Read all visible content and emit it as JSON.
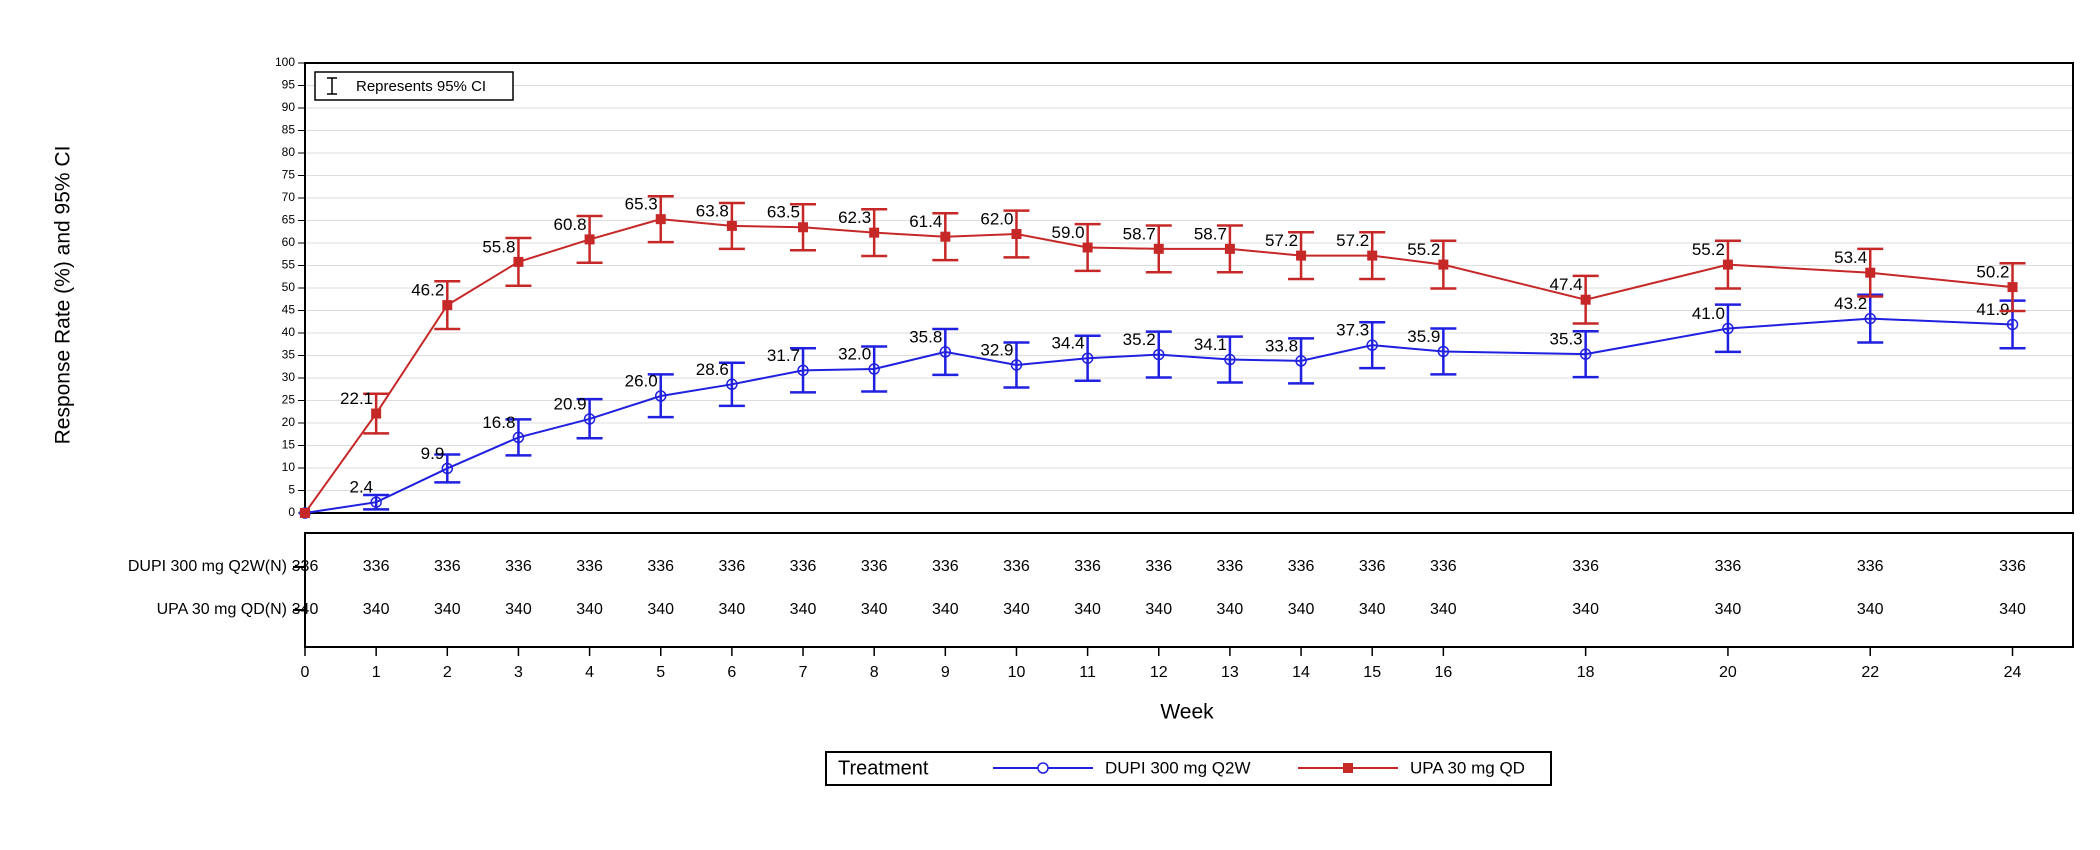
{
  "chart_data": {
    "type": "line",
    "y_label": "Response Rate (%) and 95% CI",
    "x_label": "Week",
    "annotation": "Represents 95% CI",
    "legend_title": "Treatment",
    "x": [
      0,
      1,
      2,
      3,
      4,
      5,
      6,
      7,
      8,
      9,
      10,
      11,
      12,
      13,
      14,
      15,
      16,
      18,
      20,
      22,
      24
    ],
    "xlim": [
      0,
      24.85
    ],
    "xticks": [
      0,
      1,
      2,
      3,
      4,
      5,
      6,
      7,
      8,
      9,
      10,
      11,
      12,
      13,
      14,
      15,
      16,
      18,
      20,
      22,
      24
    ],
    "ylim": [
      0,
      100
    ],
    "yticks": [
      0,
      5,
      10,
      15,
      20,
      25,
      30,
      35,
      40,
      45,
      50,
      55,
      60,
      65,
      70,
      75,
      80,
      85,
      90,
      95,
      100
    ],
    "grid": true,
    "series": [
      {
        "name": "DUPI 300 mg Q2W",
        "color": "#2020e0",
        "marker": "circle",
        "values": [
          0,
          2.4,
          9.9,
          16.8,
          20.9,
          26.0,
          28.6,
          31.7,
          32.0,
          35.8,
          32.9,
          34.4,
          35.2,
          34.1,
          33.8,
          37.3,
          35.9,
          35.3,
          41.0,
          43.2,
          41.9
        ],
        "value_labels": [
          null,
          "2.4",
          "9.9",
          "16.8",
          "20.9",
          "26.0",
          "28.6",
          "31.7",
          "32.0",
          "35.8",
          "32.9",
          "34.4",
          "35.2",
          "34.1",
          "33.8",
          "37.3",
          "35.9",
          "35.3",
          "41.0",
          "43.2",
          "41.9"
        ],
        "ci_lower": [
          null,
          0.8,
          6.8,
          12.8,
          16.6,
          21.3,
          23.8,
          26.8,
          27,
          30.7,
          27.9,
          29.4,
          30.1,
          29,
          28.8,
          32.2,
          30.8,
          30.2,
          35.8,
          37.9,
          36.6
        ],
        "ci_upper": [
          null,
          4,
          13,
          20.8,
          25.3,
          30.8,
          33.4,
          36.6,
          37,
          40.9,
          37.9,
          39.4,
          40.3,
          39.2,
          38.8,
          42.4,
          41,
          40.4,
          46.3,
          48.5,
          47.2
        ]
      },
      {
        "name": "UPA 30 mg QD",
        "color": "#c62828",
        "marker": "square",
        "values": [
          0,
          22.1,
          46.2,
          55.8,
          60.8,
          65.3,
          63.8,
          63.5,
          62.3,
          61.4,
          62.0,
          59.0,
          58.7,
          58.7,
          57.2,
          57.2,
          55.2,
          47.4,
          55.2,
          53.4,
          50.2
        ],
        "value_labels": [
          null,
          "22.1",
          "46.2",
          "55.8",
          "60.8",
          "65.3",
          "63.8",
          "63.5",
          "62.3",
          "61.4",
          "62.0",
          "59.0",
          "58.7",
          "58.7",
          "57.2",
          "57.2",
          "55.2",
          "47.4",
          "55.2",
          "53.4",
          "50.2"
        ],
        "ci_lower": [
          null,
          17.7,
          40.9,
          50.5,
          55.6,
          60.2,
          58.7,
          58.4,
          57.1,
          56.2,
          56.8,
          53.8,
          53.5,
          53.5,
          52,
          52,
          49.9,
          42.1,
          49.9,
          48.1,
          44.9
        ],
        "ci_upper": [
          null,
          26.5,
          51.5,
          61.1,
          66,
          70.4,
          68.9,
          68.6,
          67.5,
          66.6,
          67.2,
          64.2,
          63.9,
          63.9,
          62.4,
          62.4,
          60.5,
          52.7,
          60.5,
          58.7,
          55.5
        ]
      }
    ],
    "risk_table": [
      {
        "label": "DUPI 300 mg Q2W(N)",
        "values": [
          336,
          336,
          336,
          336,
          336,
          336,
          336,
          336,
          336,
          336,
          336,
          336,
          336,
          336,
          336,
          336,
          336,
          336,
          336,
          336,
          336
        ]
      },
      {
        "label": "UPA 30 mg QD(N)",
        "values": [
          340,
          340,
          340,
          340,
          340,
          340,
          340,
          340,
          340,
          340,
          340,
          340,
          340,
          340,
          340,
          340,
          340,
          340,
          340,
          340,
          340
        ]
      }
    ]
  }
}
